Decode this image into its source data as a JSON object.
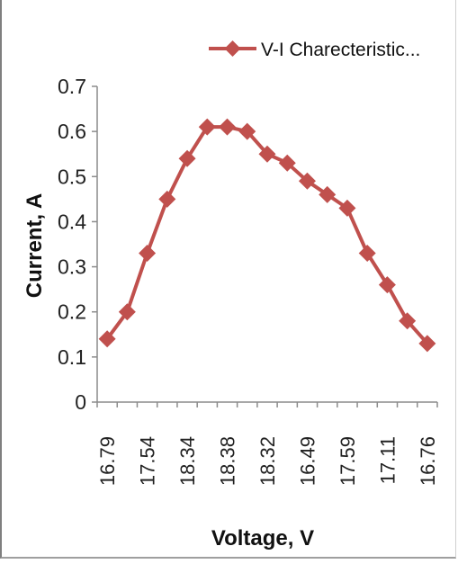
{
  "chart_data": {
    "type": "line",
    "title": "",
    "xlabel": "Voltage, V",
    "ylabel": "Current, A",
    "ylim": [
      0,
      0.7
    ],
    "yticks": [
      "0",
      "0.1",
      "0.2",
      "0.3",
      "0.4",
      "0.5",
      "0.6",
      "0.7"
    ],
    "x_tick_labels": [
      "16.79",
      "17.54",
      "18.34",
      "18.38",
      "18.32",
      "16.49",
      "17.59",
      "17.11",
      "16.76"
    ],
    "grid": false,
    "legend": {
      "position": "top-right",
      "label": "V-I Charecteristic..."
    },
    "series": [
      {
        "name": "V-I Charecteristic...",
        "color": "#c0504d",
        "values": [
          0.14,
          0.2,
          0.33,
          0.45,
          0.54,
          0.61,
          0.61,
          0.6,
          0.55,
          0.53,
          0.49,
          0.46,
          0.43,
          0.33,
          0.26,
          0.18,
          0.13
        ]
      }
    ]
  }
}
